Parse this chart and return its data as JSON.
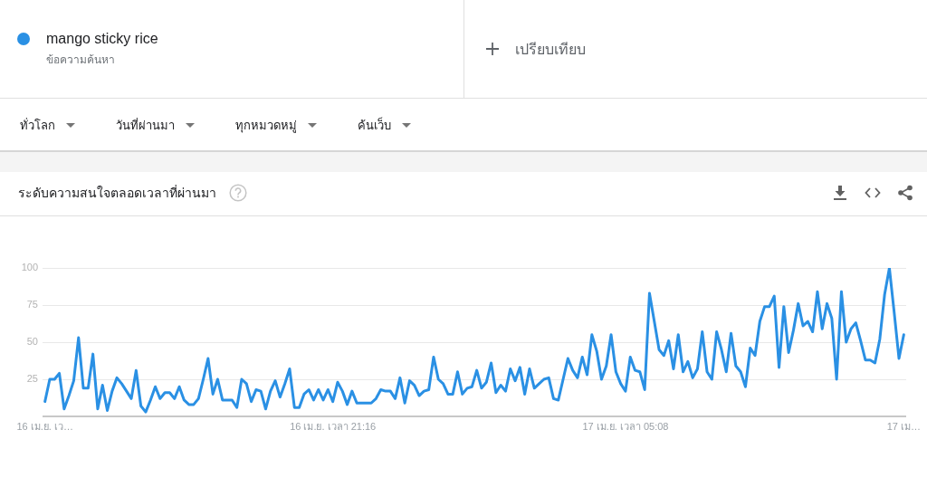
{
  "chart_data": {
    "type": "line",
    "title": "ระดับความสนใจตลอดเวลาที่ผ่านมา",
    "categories": [
      "16 เม.ย. เว…",
      null,
      null,
      null,
      null,
      null,
      null,
      null,
      null,
      null,
      null,
      null,
      null,
      null,
      null,
      null,
      null,
      null,
      null,
      null,
      null,
      null,
      null,
      null,
      null,
      null,
      null,
      null,
      null,
      null,
      null,
      null,
      null,
      null,
      null,
      null,
      null,
      null,
      null,
      null,
      null,
      null,
      null,
      null,
      null,
      null,
      null,
      null,
      null,
      null,
      null,
      null,
      null,
      null,
      null,
      null,
      null,
      null,
      null,
      null,
      "16 เม.ย. เวลา 21:16",
      null,
      null,
      null,
      null,
      null,
      null,
      null,
      null,
      null,
      null,
      null,
      null,
      null,
      null,
      null,
      null,
      null,
      null,
      null,
      null,
      null,
      null,
      null,
      null,
      null,
      null,
      null,
      null,
      null,
      null,
      null,
      null,
      null,
      null,
      null,
      null,
      null,
      null,
      null,
      null,
      null,
      null,
      null,
      null,
      null,
      null,
      null,
      null,
      null,
      null,
      null,
      null,
      null,
      null,
      null,
      null,
      null,
      null,
      null,
      null,
      "17 เม.ย. เวลา 05:08",
      null,
      null,
      null,
      null,
      null,
      null,
      null,
      null,
      null,
      null,
      null,
      null,
      null,
      null,
      null,
      null,
      null,
      null,
      null,
      null,
      null,
      null,
      null,
      null,
      null,
      null,
      null,
      null,
      null,
      null,
      null,
      null,
      null,
      null,
      null,
      null,
      null,
      null,
      null,
      null,
      null,
      null,
      null,
      null,
      null,
      null,
      null,
      null,
      null,
      null,
      null,
      null,
      null,
      null,
      null,
      null,
      null,
      "17 เม…"
    ],
    "series": [
      {
        "name": "mango sticky rice",
        "color": "#2a90e4",
        "values": [
          10,
          25,
          25,
          29,
          5,
          14,
          24,
          53,
          19,
          19,
          42,
          5,
          21,
          4,
          17,
          26,
          22,
          17,
          12,
          31,
          7,
          3,
          11,
          20,
          12,
          16,
          16,
          12,
          20,
          11,
          8,
          8,
          12,
          25,
          39,
          15,
          25,
          11,
          11,
          11,
          6,
          25,
          22,
          10,
          18,
          17,
          5,
          17,
          24,
          13,
          22,
          32,
          6,
          6,
          15,
          18,
          11,
          18,
          11,
          18,
          10,
          23,
          17,
          8,
          17,
          9,
          9,
          9,
          9,
          12,
          18,
          17,
          17,
          12,
          26,
          9,
          24,
          21,
          14,
          17,
          18,
          40,
          25,
          22,
          15,
          15,
          30,
          15,
          19,
          20,
          31,
          19,
          23,
          36,
          16,
          21,
          17,
          32,
          24,
          33,
          15,
          32,
          19,
          22,
          25,
          26,
          12,
          11,
          25,
          39,
          31,
          26,
          40,
          28,
          55,
          44,
          25,
          34,
          55,
          30,
          22,
          17,
          40,
          31,
          30,
          18,
          83,
          64,
          45,
          41,
          51,
          32,
          55,
          30,
          37,
          26,
          32,
          57,
          30,
          25,
          57,
          45,
          30,
          56,
          34,
          30,
          20,
          46,
          41,
          64,
          74,
          74,
          81,
          33,
          74,
          43,
          58,
          76,
          61,
          64,
          57,
          84,
          59,
          76,
          66,
          25,
          84,
          50,
          59,
          63,
          51,
          38,
          38,
          36,
          52,
          82,
          100,
          70,
          39,
          55
        ]
      }
    ],
    "ylim": [
      0,
      100
    ],
    "yticks": [
      {
        "value": 0,
        "label": null
      },
      25,
      50,
      75,
      100
    ],
    "grid": "y",
    "legend": "top left",
    "annotations": [
      "ข้อความค้นหา",
      "เปรียบเทียบ",
      "ทั่วโลก",
      "วันที่ผ่านมา",
      "ทุกหมวดหมู่",
      "ค้นเว็บ"
    ]
  }
}
